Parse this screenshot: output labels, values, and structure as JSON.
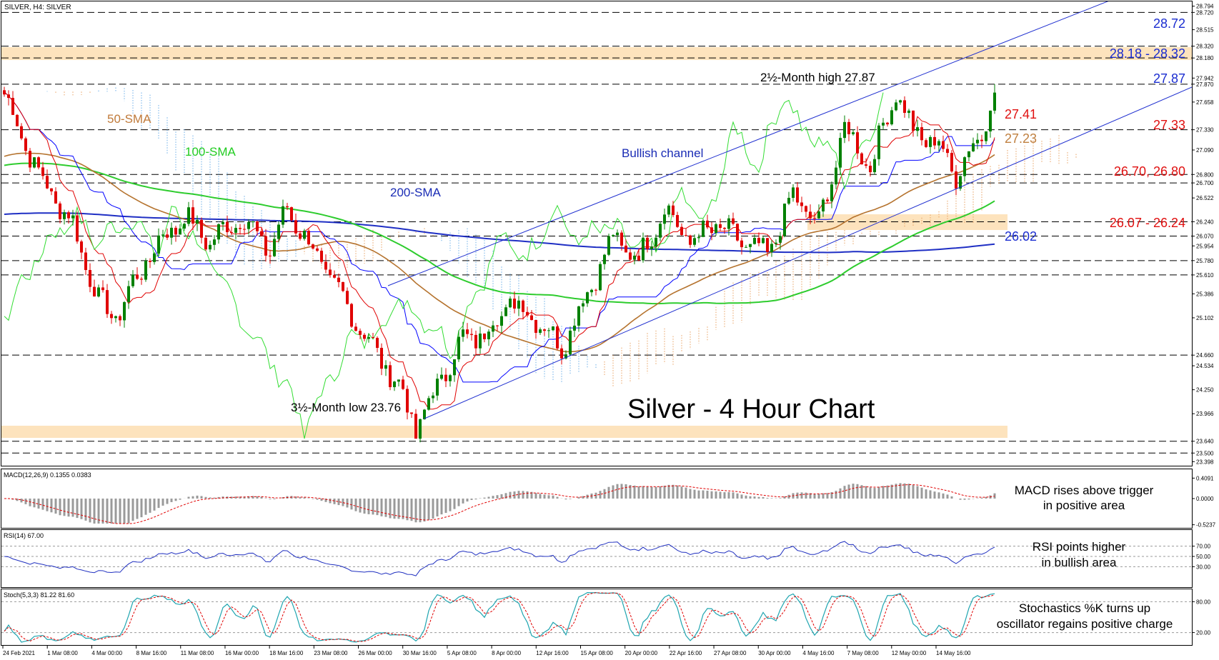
{
  "header": {
    "symbol_label": "SILVER, H4:  SILVER"
  },
  "title": "Silver - 4 Hour Chart",
  "colors": {
    "candle_up": "#008000",
    "candle_down": "#e00000",
    "sma50": "#b5732e",
    "sma100": "#2ecc2e",
    "sma200": "#1f2fc4",
    "kijun": "#0000ff",
    "tenkan": "#e00000",
    "chikou": "#33dd33",
    "cloud_up": "#e8a060",
    "cloud_down": "#6aaee8",
    "support_zone": "#fde3bd",
    "channel": "#2030d0"
  },
  "annotations": {
    "sma50": "50-SMA",
    "sma100": "100-SMA",
    "sma200": "200-SMA",
    "channel": "Bullish channel",
    "high": "2½-Month high 27.87",
    "low": "3½-Month low 23.76",
    "lvl_2872": "28.72",
    "lvl_2818": "28.18 - 28.32",
    "lvl_2787": "27.87",
    "lvl_2741": "27.41",
    "lvl_2733": "27.33",
    "lvl_2723": "27.23",
    "lvl_2670": "26.70, 26.80",
    "lvl_2607": "26.07 - 26.24",
    "lvl_2602": "26.02"
  },
  "axis": {
    "price_ticks": [
      "28.794",
      "28.720",
      "28.515",
      "28.320",
      "28.180",
      "27.942",
      "27.870",
      "27.658",
      "27.330",
      "27.090",
      "26.800",
      "26.700",
      "26.522",
      "26.240",
      "26.070",
      "25.954",
      "25.780",
      "25.610",
      "25.386",
      "25.102",
      "24.660",
      "24.534",
      "24.250",
      "23.966",
      "23.640",
      "23.500",
      "23.398"
    ],
    "time_ticks": [
      "24 Feb 2021",
      "1 Mar 08:00",
      "4 Mar 00:00",
      "8 Mar 16:00",
      "11 Mar 08:00",
      "16 Mar 00:00",
      "18 Mar 16:00",
      "23 Mar 08:00",
      "26 Mar 00:00",
      "30 Mar 16:00",
      "5 Apr 08:00",
      "8 Apr 00:00",
      "12 Apr 16:00",
      "15 Apr 08:00",
      "20 Apr 00:00",
      "22 Apr 16:00",
      "27 Apr 08:00",
      "30 Apr 00:00",
      "4 May 16:00",
      "7 May 08:00",
      "12 May 00:00",
      "14 May 16:00"
    ]
  },
  "macd": {
    "label": "MACD(12,26,9) 0.1355 0.0383",
    "note1": "MACD rises above trigger",
    "note2": "in positive area",
    "ticks": [
      "0.4091",
      "0.0000",
      "-0.5237"
    ]
  },
  "rsi": {
    "label": "RSI(14) 67.00",
    "note1": "RSI points higher",
    "note2": "in bullish area",
    "ticks": [
      "70.00",
      "50.00",
      "30.00"
    ]
  },
  "stoch": {
    "label": "Stoch(5,3,3) 81.22 81.60",
    "note1": "Stochastics %K turns up",
    "note2": "oscillator regains positive charge",
    "ticks": [
      "80.00",
      "20.00"
    ]
  },
  "chart_data": {
    "type": "line",
    "title": "Silver - 4 Hour Chart",
    "ylim": [
      23.35,
      28.85
    ],
    "price_path": [
      [
        0,
        27.75
      ],
      [
        8,
        26.8
      ],
      [
        16,
        26.2
      ],
      [
        22,
        25.3
      ],
      [
        26,
        25.1
      ],
      [
        30,
        25.5
      ],
      [
        36,
        26.0
      ],
      [
        42,
        26.3
      ],
      [
        48,
        26.0
      ],
      [
        55,
        26.3
      ],
      [
        62,
        25.9
      ],
      [
        66,
        26.4
      ],
      [
        72,
        25.9
      ],
      [
        78,
        25.4
      ],
      [
        84,
        24.9
      ],
      [
        88,
        24.6
      ],
      [
        93,
        24.2
      ],
      [
        96,
        23.76
      ],
      [
        101,
        24.3
      ],
      [
        107,
        24.85
      ],
      [
        112,
        24.9
      ],
      [
        118,
        25.3
      ],
      [
        124,
        25.1
      ],
      [
        130,
        24.75
      ],
      [
        136,
        25.4
      ],
      [
        142,
        26.05
      ],
      [
        148,
        25.8
      ],
      [
        154,
        26.4
      ],
      [
        160,
        26.0
      ],
      [
        166,
        26.2
      ],
      [
        172,
        26.0
      ],
      [
        178,
        25.85
      ],
      [
        184,
        26.55
      ],
      [
        190,
        26.2
      ],
      [
        196,
        27.35
      ],
      [
        202,
        26.9
      ],
      [
        208,
        27.8
      ],
      [
        212,
        27.3
      ],
      [
        218,
        27.15
      ],
      [
        222,
        26.8
      ],
      [
        228,
        27.3
      ],
      [
        231,
        27.87
      ]
    ],
    "levels": {
      "resistance": [
        28.72,
        28.32,
        28.18,
        27.87,
        27.33
      ],
      "support": [
        26.8,
        26.7,
        26.24,
        26.07,
        25.78,
        25.61,
        24.66,
        23.64,
        23.5
      ]
    },
    "high": 27.87,
    "low": 23.76
  }
}
